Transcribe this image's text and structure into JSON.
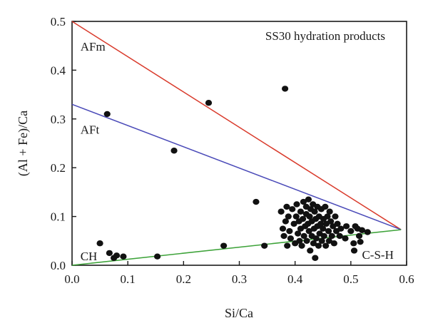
{
  "chart_data": {
    "type": "scatter",
    "title": "SS30 hydration products",
    "xlabel": "Si/Ca",
    "ylabel": "(Al + Fe)/Ca",
    "xlim": [
      0.0,
      0.6
    ],
    "ylim": [
      0.0,
      0.5
    ],
    "x_ticks": [
      "0.0",
      "0.1",
      "0.2",
      "0.3",
      "0.4",
      "0.5",
      "0.6"
    ],
    "y_ticks": [
      "0.0",
      "0.1",
      "0.2",
      "0.3",
      "0.4",
      "0.5"
    ],
    "grid": false,
    "point_color": "#111111",
    "points": [
      [
        0.05,
        0.045
      ],
      [
        0.063,
        0.31
      ],
      [
        0.067,
        0.025
      ],
      [
        0.075,
        0.015
      ],
      [
        0.08,
        0.02
      ],
      [
        0.092,
        0.018
      ],
      [
        0.153,
        0.018
      ],
      [
        0.183,
        0.235
      ],
      [
        0.245,
        0.333
      ],
      [
        0.272,
        0.04
      ],
      [
        0.33,
        0.13
      ],
      [
        0.345,
        0.04
      ],
      [
        0.382,
        0.362
      ],
      [
        0.375,
        0.11
      ],
      [
        0.378,
        0.075
      ],
      [
        0.38,
        0.06
      ],
      [
        0.383,
        0.09
      ],
      [
        0.385,
        0.12
      ],
      [
        0.386,
        0.04
      ],
      [
        0.388,
        0.1
      ],
      [
        0.39,
        0.07
      ],
      [
        0.392,
        0.055
      ],
      [
        0.395,
        0.115
      ],
      [
        0.398,
        0.085
      ],
      [
        0.4,
        0.045
      ],
      [
        0.402,
        0.1
      ],
      [
        0.403,
        0.125
      ],
      [
        0.405,
        0.065
      ],
      [
        0.407,
        0.09
      ],
      [
        0.408,
        0.05
      ],
      [
        0.41,
        0.11
      ],
      [
        0.41,
        0.075
      ],
      [
        0.412,
        0.04
      ],
      [
        0.414,
        0.095
      ],
      [
        0.415,
        0.13
      ],
      [
        0.416,
        0.06
      ],
      [
        0.418,
        0.08
      ],
      [
        0.42,
        0.105
      ],
      [
        0.42,
        0.12
      ],
      [
        0.421,
        0.05
      ],
      [
        0.423,
        0.085
      ],
      [
        0.424,
        0.135
      ],
      [
        0.425,
        0.07
      ],
      [
        0.426,
        0.1
      ],
      [
        0.427,
        0.03
      ],
      [
        0.428,
        0.115
      ],
      [
        0.43,
        0.06
      ],
      [
        0.43,
        0.09
      ],
      [
        0.432,
        0.125
      ],
      [
        0.433,
        0.045
      ],
      [
        0.434,
        0.075
      ],
      [
        0.435,
        0.11
      ],
      [
        0.436,
        0.015
      ],
      [
        0.437,
        0.095
      ],
      [
        0.438,
        0.055
      ],
      [
        0.44,
        0.08
      ],
      [
        0.44,
        0.12
      ],
      [
        0.442,
        0.04
      ],
      [
        0.443,
        0.1
      ],
      [
        0.444,
        0.065
      ],
      [
        0.446,
        0.085
      ],
      [
        0.447,
        0.115
      ],
      [
        0.448,
        0.05
      ],
      [
        0.45,
        0.075
      ],
      [
        0.451,
        0.095
      ],
      [
        0.452,
        0.06
      ],
      [
        0.454,
        0.12
      ],
      [
        0.455,
        0.04
      ],
      [
        0.456,
        0.085
      ],
      [
        0.458,
        0.1
      ],
      [
        0.46,
        0.07
      ],
      [
        0.461,
        0.05
      ],
      [
        0.462,
        0.11
      ],
      [
        0.464,
        0.09
      ],
      [
        0.466,
        0.06
      ],
      [
        0.468,
        0.08
      ],
      [
        0.47,
        0.045
      ],
      [
        0.472,
        0.1
      ],
      [
        0.474,
        0.07
      ],
      [
        0.476,
        0.085
      ],
      [
        0.48,
        0.06
      ],
      [
        0.482,
        0.075
      ],
      [
        0.49,
        0.055
      ],
      [
        0.492,
        0.08
      ],
      [
        0.5,
        0.07
      ],
      [
        0.505,
        0.045
      ],
      [
        0.506,
        0.03
      ],
      [
        0.508,
        0.08
      ],
      [
        0.512,
        0.075
      ],
      [
        0.515,
        0.06
      ],
      [
        0.52,
        0.072
      ],
      [
        0.53,
        0.068
      ],
      [
        0.517,
        0.048
      ]
    ],
    "lines": [
      {
        "points": [
          [
            0.0,
            0.5
          ],
          [
            0.59,
            0.073
          ]
        ],
        "color": "#d93a2b",
        "label": "AFm"
      },
      {
        "points": [
          [
            0.0,
            0.33
          ],
          [
            0.59,
            0.073
          ]
        ],
        "color": "#4a4ab8",
        "label": "AFt"
      },
      {
        "points": [
          [
            0.0,
            0.0
          ],
          [
            0.59,
            0.073
          ]
        ],
        "color": "#3ea33a"
      }
    ],
    "annotations": [
      {
        "text": "AFm",
        "x": 0.015,
        "y": 0.44
      },
      {
        "text": "AFt",
        "x": 0.015,
        "y": 0.27
      },
      {
        "text": "CH",
        "x": 0.015,
        "y": 0.01
      },
      {
        "text": "C-S-H",
        "x": 0.52,
        "y": 0.013
      }
    ]
  }
}
